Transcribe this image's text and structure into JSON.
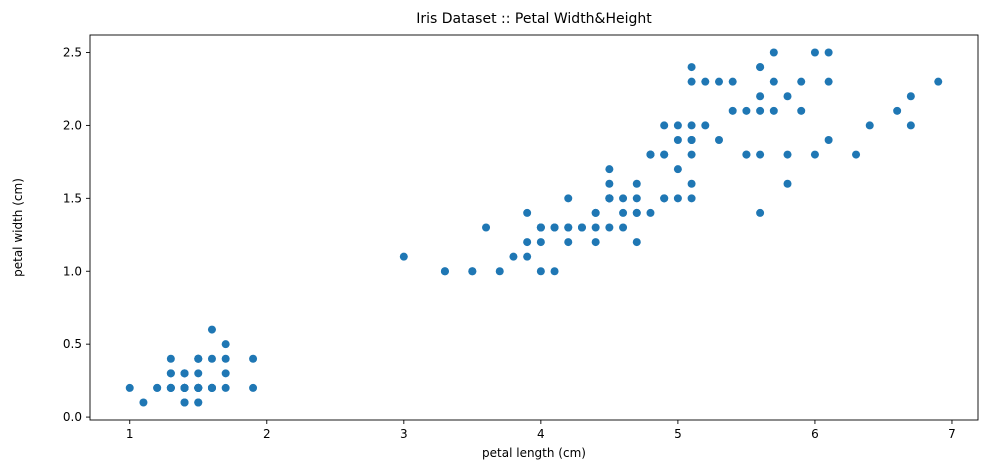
{
  "chart_data": {
    "type": "scatter",
    "title": "Iris Dataset :: Petal Width&Height",
    "xlabel": "petal length (cm)",
    "ylabel": "petal width (cm)",
    "xlim": [
      0.71,
      7.19
    ],
    "ylim": [
      -0.02,
      2.62
    ],
    "xticks": [
      1,
      2,
      3,
      4,
      5,
      6,
      7
    ],
    "yticks": [
      0.0,
      0.5,
      1.0,
      1.5,
      2.0,
      2.5
    ],
    "ytick_labels": [
      "0.0",
      "0.5",
      "1.0",
      "1.5",
      "2.0",
      "2.5"
    ],
    "grid": false,
    "marker_color": "#1f77b4",
    "points": [
      [
        1.4,
        0.2
      ],
      [
        1.4,
        0.2
      ],
      [
        1.3,
        0.2
      ],
      [
        1.5,
        0.2
      ],
      [
        1.4,
        0.2
      ],
      [
        1.7,
        0.4
      ],
      [
        1.4,
        0.3
      ],
      [
        1.5,
        0.2
      ],
      [
        1.4,
        0.2
      ],
      [
        1.5,
        0.1
      ],
      [
        1.5,
        0.2
      ],
      [
        1.6,
        0.2
      ],
      [
        1.4,
        0.1
      ],
      [
        1.1,
        0.1
      ],
      [
        1.2,
        0.2
      ],
      [
        1.5,
        0.4
      ],
      [
        1.3,
        0.4
      ],
      [
        1.4,
        0.3
      ],
      [
        1.7,
        0.3
      ],
      [
        1.5,
        0.3
      ],
      [
        1.7,
        0.2
      ],
      [
        1.5,
        0.4
      ],
      [
        1.0,
        0.2
      ],
      [
        1.7,
        0.5
      ],
      [
        1.9,
        0.2
      ],
      [
        1.6,
        0.2
      ],
      [
        1.6,
        0.4
      ],
      [
        1.5,
        0.2
      ],
      [
        1.4,
        0.2
      ],
      [
        1.6,
        0.2
      ],
      [
        1.6,
        0.2
      ],
      [
        1.5,
        0.4
      ],
      [
        1.5,
        0.1
      ],
      [
        1.4,
        0.2
      ],
      [
        1.5,
        0.2
      ],
      [
        1.2,
        0.2
      ],
      [
        1.3,
        0.2
      ],
      [
        1.4,
        0.1
      ],
      [
        1.3,
        0.2
      ],
      [
        1.5,
        0.2
      ],
      [
        1.3,
        0.3
      ],
      [
        1.3,
        0.3
      ],
      [
        1.3,
        0.2
      ],
      [
        1.6,
        0.6
      ],
      [
        1.9,
        0.4
      ],
      [
        1.4,
        0.3
      ],
      [
        1.6,
        0.2
      ],
      [
        1.4,
        0.2
      ],
      [
        1.5,
        0.2
      ],
      [
        1.4,
        0.2
      ],
      [
        4.7,
        1.4
      ],
      [
        4.5,
        1.5
      ],
      [
        4.9,
        1.5
      ],
      [
        4.0,
        1.3
      ],
      [
        4.6,
        1.5
      ],
      [
        4.5,
        1.3
      ],
      [
        4.7,
        1.6
      ],
      [
        3.3,
        1.0
      ],
      [
        4.6,
        1.3
      ],
      [
        3.9,
        1.4
      ],
      [
        3.5,
        1.0
      ],
      [
        4.2,
        1.5
      ],
      [
        4.0,
        1.0
      ],
      [
        4.7,
        1.4
      ],
      [
        3.6,
        1.3
      ],
      [
        4.4,
        1.4
      ],
      [
        4.5,
        1.5
      ],
      [
        4.1,
        1.0
      ],
      [
        4.5,
        1.5
      ],
      [
        3.9,
        1.1
      ],
      [
        4.8,
        1.8
      ],
      [
        4.0,
        1.3
      ],
      [
        4.9,
        1.5
      ],
      [
        4.7,
        1.2
      ],
      [
        4.3,
        1.3
      ],
      [
        4.4,
        1.4
      ],
      [
        4.8,
        1.4
      ],
      [
        5.0,
        1.7
      ],
      [
        4.5,
        1.5
      ],
      [
        3.5,
        1.0
      ],
      [
        3.8,
        1.1
      ],
      [
        3.7,
        1.0
      ],
      [
        3.9,
        1.2
      ],
      [
        5.1,
        1.6
      ],
      [
        4.5,
        1.5
      ],
      [
        4.5,
        1.6
      ],
      [
        4.7,
        1.5
      ],
      [
        4.4,
        1.3
      ],
      [
        4.1,
        1.3
      ],
      [
        4.0,
        1.3
      ],
      [
        4.4,
        1.2
      ],
      [
        4.6,
        1.4
      ],
      [
        4.0,
        1.2
      ],
      [
        3.3,
        1.0
      ],
      [
        4.2,
        1.3
      ],
      [
        4.2,
        1.2
      ],
      [
        4.2,
        1.3
      ],
      [
        4.3,
        1.3
      ],
      [
        3.0,
        1.1
      ],
      [
        4.1,
        1.3
      ],
      [
        6.0,
        2.5
      ],
      [
        5.1,
        1.9
      ],
      [
        5.9,
        2.1
      ],
      [
        5.6,
        1.8
      ],
      [
        5.8,
        2.2
      ],
      [
        6.6,
        2.1
      ],
      [
        4.5,
        1.7
      ],
      [
        6.3,
        1.8
      ],
      [
        5.8,
        1.8
      ],
      [
        6.1,
        2.5
      ],
      [
        5.1,
        2.0
      ],
      [
        5.3,
        1.9
      ],
      [
        5.5,
        2.1
      ],
      [
        5.0,
        2.0
      ],
      [
        5.1,
        2.4
      ],
      [
        5.3,
        2.3
      ],
      [
        5.5,
        1.8
      ],
      [
        6.7,
        2.2
      ],
      [
        6.9,
        2.3
      ],
      [
        5.0,
        1.5
      ],
      [
        5.7,
        2.3
      ],
      [
        4.9,
        2.0
      ],
      [
        6.7,
        2.0
      ],
      [
        4.9,
        1.8
      ],
      [
        5.7,
        2.1
      ],
      [
        6.0,
        1.8
      ],
      [
        4.8,
        1.8
      ],
      [
        4.9,
        1.8
      ],
      [
        5.6,
        2.1
      ],
      [
        5.8,
        1.6
      ],
      [
        6.1,
        1.9
      ],
      [
        6.4,
        2.0
      ],
      [
        5.6,
        2.2
      ],
      [
        5.1,
        1.5
      ],
      [
        5.6,
        1.4
      ],
      [
        6.1,
        2.3
      ],
      [
        5.6,
        2.4
      ],
      [
        5.5,
        1.8
      ],
      [
        4.8,
        1.8
      ],
      [
        5.4,
        2.1
      ],
      [
        5.6,
        2.4
      ],
      [
        5.1,
        2.3
      ],
      [
        5.1,
        1.9
      ],
      [
        5.9,
        2.3
      ],
      [
        5.7,
        2.5
      ],
      [
        5.2,
        2.3
      ],
      [
        5.0,
        1.9
      ],
      [
        5.2,
        2.0
      ],
      [
        5.4,
        2.3
      ],
      [
        5.1,
        1.8
      ]
    ]
  }
}
